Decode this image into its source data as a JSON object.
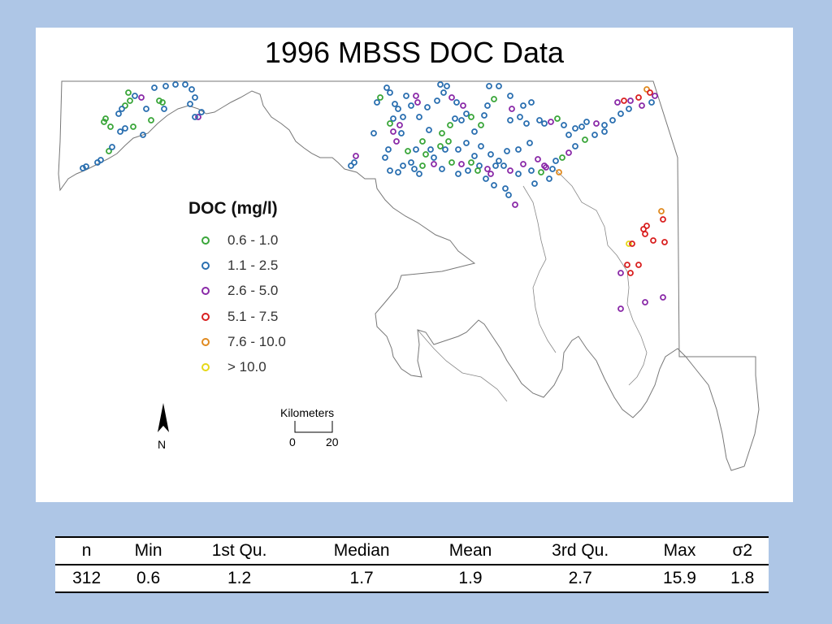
{
  "title": "1996 MBSS DOC Data",
  "legend": {
    "title": "DOC (mg/l)",
    "items": [
      {
        "label": "0.6 - 1.0",
        "color": "#3aa63a"
      },
      {
        "label": "1.1 - 2.5",
        "color": "#2a6fb0"
      },
      {
        "label": "2.6 - 5.0",
        "color": "#8a2aa8"
      },
      {
        "label": "5.1 - 7.5",
        "color": "#d92020"
      },
      {
        "label": "7.6 - 10.0",
        "color": "#e08a20"
      },
      {
        "label": "> 10.0",
        "color": "#e6d818"
      }
    ]
  },
  "scale_bar": {
    "title": "Kilometers",
    "start": "0",
    "end": "20"
  },
  "north_arrow": {
    "label": "N"
  },
  "stats": {
    "headers": [
      "n",
      "Min",
      "1st Qu.",
      "Median",
      "Mean",
      "3rd Qu.",
      "Max",
      "σ2"
    ],
    "values": [
      "312",
      "0.6",
      "1.2",
      "1.7",
      "1.9",
      "2.7",
      "15.9",
      "1.8"
    ]
  },
  "colors": {
    "background": "#aec6e6",
    "panel": "#ffffff",
    "outline": "#666666"
  }
}
